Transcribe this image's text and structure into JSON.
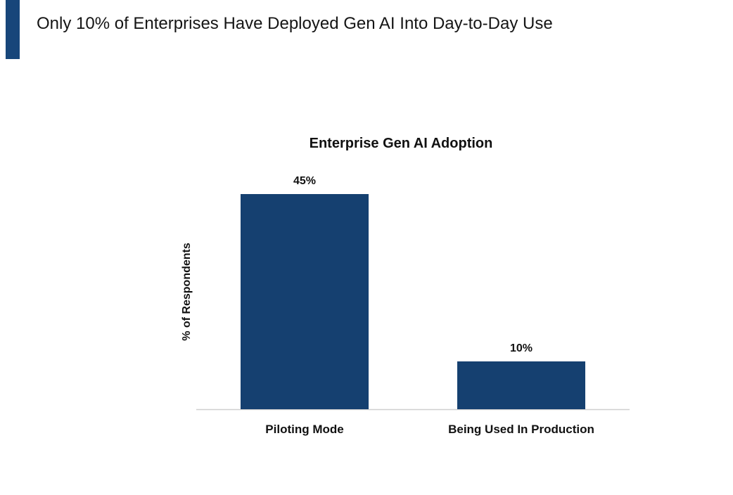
{
  "header": {
    "title": "Only 10% of Enterprises Have Deployed Gen AI Into Day-to-Day Use",
    "accent_color": "#17467a"
  },
  "chart_data": {
    "type": "bar",
    "title": "Enterprise Gen AI Adoption",
    "xlabel": "",
    "ylabel": "% of Respondents",
    "categories": [
      "Piloting Mode",
      "Being Used In Production"
    ],
    "values": [
      45,
      10
    ],
    "data_labels": [
      "45%",
      "10%"
    ],
    "ylim": [
      0,
      50
    ],
    "grid": false,
    "bar_color": "#154070",
    "axis_color": "#cfcfcf"
  }
}
